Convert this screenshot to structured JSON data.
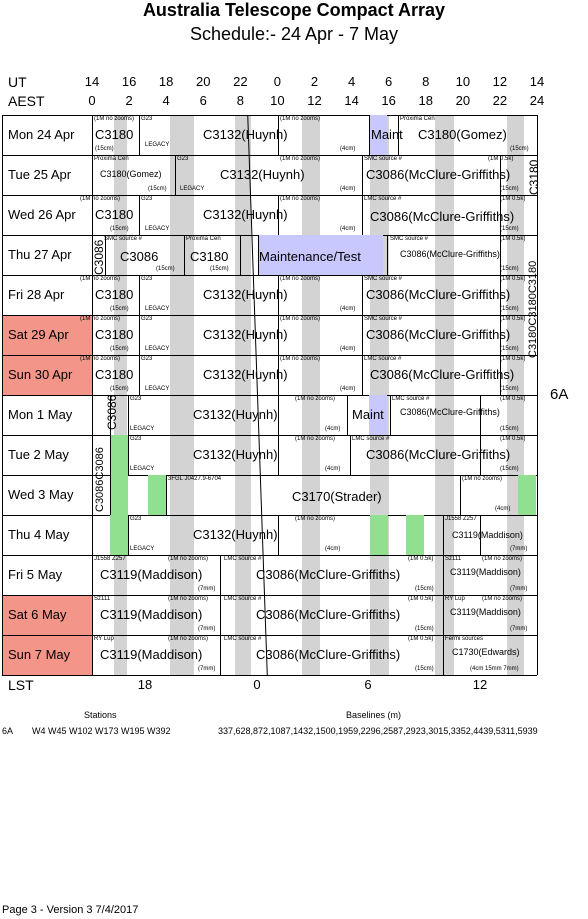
{
  "title": "Australia Telescope Compact Array",
  "subtitle": "Schedule:- 24 Apr - 7  May",
  "axes": {
    "ut_label": "UT",
    "aest_label": "AEST",
    "lst_label": "LST",
    "ut_ticks": [
      "14",
      "16",
      "18",
      "20",
      "22",
      "0",
      "2",
      "4",
      "6",
      "8",
      "10",
      "12",
      "14"
    ],
    "aest_ticks": [
      "0",
      "2",
      "4",
      "6",
      "8",
      "10",
      "12",
      "14",
      "16",
      "18",
      "20",
      "22",
      "24"
    ],
    "lst_ticks": [
      "18",
      "0",
      "6",
      "12"
    ]
  },
  "config": "6A",
  "days": [
    {
      "label": "Mon   24 Apr",
      "weekend": false
    },
    {
      "label": "Tue   25 Apr",
      "weekend": false
    },
    {
      "label": "Wed  26 Apr",
      "weekend": false
    },
    {
      "label": "Thu   27 Apr",
      "weekend": false
    },
    {
      "label": "Fri    28 Apr",
      "weekend": false
    },
    {
      "label": "Sat   29 Apr",
      "weekend": true
    },
    {
      "label": "Sun   30 Apr",
      "weekend": true
    },
    {
      "label": "Mon   1  May",
      "weekend": false
    },
    {
      "label": "Tue   2  May",
      "weekend": false
    },
    {
      "label": "Wed  3  May",
      "weekend": false
    },
    {
      "label": "Thu   4  May",
      "weekend": false
    },
    {
      "label": "Fri    5  May",
      "weekend": false
    },
    {
      "label": "Sat   6  May",
      "weekend": true
    },
    {
      "label": "Sun   7  May",
      "weekend": true
    }
  ],
  "projects": {
    "c3180": "C3180",
    "c3132": "C3132(Huynh)",
    "maint": "Maint",
    "c3180g": "C3180(Gomez)",
    "c3086": "C3086",
    "c3086mg": "C3086(McClure-Griffiths)",
    "maint_test": "Maintenance/Test",
    "c3170": "C3170(Strader)",
    "c3119": "C3119(Maddison)",
    "c1730": "C1730(Edwards)",
    "c3180c3180c3180": "C3180C3180C3180",
    "c3086c3086": "C3086C3086"
  },
  "notes": {
    "n1m": "(1M no zooms)",
    "n1m05": "(1M 0.5k)",
    "n15cm": "(15cm)",
    "n4cm": "(4cm)",
    "n7mm": "(7mm)",
    "legacy": "LEGACY",
    "g23": "G23",
    "proxima": "Proxima Cen",
    "smc": "SMC source  #",
    "lmc": "LMC source  #",
    "j1558": "J1558 Z257",
    "sz111": "Sz111",
    "rylup": "RY Lup",
    "fermi": "Fermi sources",
    "fermi_note": "(4cm 15mm 7mm)",
    "sfgl": "3FGL J0427.9-6704"
  },
  "footer": {
    "stations_label": "Stations",
    "baselines_label": "Baselines (m)",
    "config": "6A",
    "stations": "W4 W45 W102 W173 W195 W392",
    "baselines": "337,628,872,1087,1432,1500,1959,2296,2587,2923,3015,3352,4439,5311,5939",
    "version": "Page 3 - Version 3  7/4/2017"
  }
}
